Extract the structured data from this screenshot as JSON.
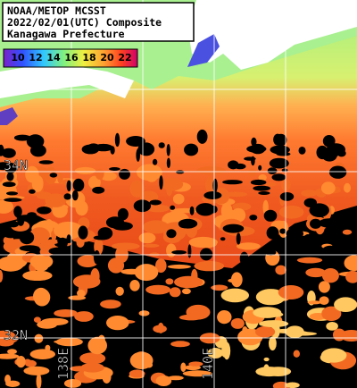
{
  "header": {
    "lines": [
      "NOAA/METOP MCSST",
      "2022/02/01(UTC) Composite",
      "Kanagawa Prefecture"
    ]
  },
  "colorbar": {
    "labels": [
      10,
      12,
      14,
      16,
      18,
      20,
      22
    ]
  },
  "grid_labels": {
    "lat": [
      "34N",
      "32N"
    ],
    "lon": [
      "138E",
      "140E"
    ]
  }
}
